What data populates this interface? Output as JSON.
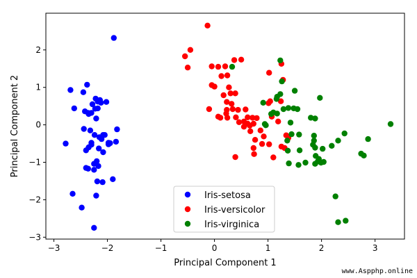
{
  "chart_data": {
    "type": "scatter",
    "title": "",
    "xlabel": "Principal Component 1",
    "ylabel": "Principal Component 2",
    "xlim": [
      -3.15,
      3.55
    ],
    "ylim": [
      -3.05,
      2.98
    ],
    "xticks": [
      -3,
      -2,
      -1,
      0,
      1,
      2,
      3
    ],
    "yticks": [
      -3,
      -2,
      -1,
      0,
      1,
      2
    ],
    "xtick_labels": [
      "−3",
      "−2",
      "−1",
      "0",
      "1",
      "2",
      "3"
    ],
    "ytick_labels": [
      "−3",
      "−2",
      "−1",
      "0",
      "1",
      "2"
    ],
    "grid": false,
    "legend_position": "bottom-center",
    "series": [
      {
        "name": "Iris-setosa",
        "color": "#0000ff",
        "points": [
          [
            -2.78,
            -0.5
          ],
          [
            -2.65,
            -1.84
          ],
          [
            -2.69,
            0.93
          ],
          [
            -2.62,
            0.44
          ],
          [
            -2.48,
            -2.21
          ],
          [
            -2.38,
            1.07
          ],
          [
            -2.45,
            0.87
          ],
          [
            -2.42,
            0.36
          ],
          [
            -2.35,
            0.29
          ],
          [
            -2.4,
            -0.68
          ],
          [
            -2.36,
            -1.17
          ],
          [
            -2.3,
            -0.53
          ],
          [
            -2.25,
            -2.75
          ],
          [
            -2.28,
            0.55
          ],
          [
            -2.22,
            0.7
          ],
          [
            -2.18,
            0.62
          ],
          [
            -2.25,
            -1.04
          ],
          [
            -2.2,
            -0.97
          ],
          [
            -2.14,
            0.66
          ],
          [
            -2.12,
            0.59
          ],
          [
            -2.16,
            -0.63
          ],
          [
            -2.08,
            -0.73
          ],
          [
            -1.98,
            -0.48
          ],
          [
            -1.95,
            -0.49
          ],
          [
            -1.88,
            2.32
          ],
          [
            -1.84,
            -0.45
          ],
          [
            -2.08,
            -0.27
          ],
          [
            -2.19,
            -1.51
          ],
          [
            -2.09,
            -1.53
          ],
          [
            -1.9,
            -1.45
          ],
          [
            -2.02,
            0.61
          ],
          [
            -2.25,
            -1.2
          ],
          [
            -2.36,
            0.32
          ],
          [
            -2.3,
            0.32
          ],
          [
            -2.23,
            0.43
          ],
          [
            -2.18,
            0.44
          ],
          [
            -2.21,
            0.17
          ],
          [
            -2.44,
            -0.11
          ],
          [
            -2.32,
            -0.15
          ],
          [
            -2.24,
            -0.27
          ],
          [
            -2.15,
            -0.33
          ],
          [
            -2.05,
            -0.27
          ],
          [
            -1.98,
            -0.52
          ],
          [
            -2.17,
            -1.1
          ],
          [
            -2.3,
            -0.48
          ],
          [
            -1.82,
            -0.12
          ],
          [
            -2.4,
            -1.15
          ],
          [
            -2.35,
            -0.6
          ],
          [
            -2.21,
            -1.89
          ],
          [
            -2.11,
            -0.38
          ]
        ]
      },
      {
        "name": "Iris-versicolor",
        "color": "#ff0000",
        "points": [
          [
            -0.13,
            2.65
          ],
          [
            -0.45,
            2.0
          ],
          [
            -0.55,
            1.83
          ],
          [
            -0.5,
            1.53
          ],
          [
            -0.05,
            1.56
          ],
          [
            0.07,
            1.55
          ],
          [
            0.2,
            1.56
          ],
          [
            0.13,
            1.3
          ],
          [
            0.24,
            1.32
          ],
          [
            0.37,
            1.73
          ],
          [
            0.5,
            1.74
          ],
          [
            -0.05,
            1.06
          ],
          [
            0.0,
            1.02
          ],
          [
            0.17,
            0.79
          ],
          [
            0.3,
            0.84
          ],
          [
            0.39,
            0.84
          ],
          [
            0.27,
            1.0
          ],
          [
            0.23,
            0.61
          ],
          [
            0.32,
            0.56
          ],
          [
            0.34,
            0.42
          ],
          [
            0.44,
            0.4
          ],
          [
            0.58,
            0.41
          ],
          [
            -0.1,
            0.42
          ],
          [
            0.07,
            0.22
          ],
          [
            0.11,
            0.19
          ],
          [
            0.22,
            0.3
          ],
          [
            0.24,
            0.19
          ],
          [
            0.23,
            0.4
          ],
          [
            0.4,
            0.2
          ],
          [
            0.46,
            0.07
          ],
          [
            0.55,
            0.09
          ],
          [
            0.62,
            0.2
          ],
          [
            0.71,
            0.19
          ],
          [
            0.62,
            0.03
          ],
          [
            0.66,
            -0.02
          ],
          [
            0.73,
            0.03
          ],
          [
            0.86,
            -0.15
          ],
          [
            0.79,
            0.18
          ],
          [
            1.01,
            0.58
          ],
          [
            1.04,
            0.63
          ],
          [
            1.24,
            0.63
          ],
          [
            1.25,
            1.63
          ],
          [
            1.28,
            1.2
          ],
          [
            1.02,
            1.39
          ],
          [
            1.07,
            0.22
          ],
          [
            0.92,
            -0.31
          ],
          [
            0.76,
            -0.4
          ],
          [
            0.73,
            -0.62
          ],
          [
            0.74,
            -0.78
          ],
          [
            0.89,
            -0.51
          ],
          [
            1.02,
            -0.52
          ],
          [
            1.1,
            -0.87
          ],
          [
            0.39,
            -0.86
          ],
          [
            1.31,
            -0.62
          ],
          [
            1.38,
            -0.35
          ],
          [
            0.67,
            -0.17
          ],
          [
            0.55,
            -0.05
          ],
          [
            1.19,
            0.09
          ],
          [
            1.25,
            -0.58
          ],
          [
            1.34,
            -0.28
          ]
        ]
      },
      {
        "name": "Iris-virginica",
        "color": "#008000",
        "points": [
          [
            0.33,
            1.55
          ],
          [
            1.23,
            1.72
          ],
          [
            1.26,
            1.16
          ],
          [
            1.5,
            0.91
          ],
          [
            1.97,
            0.72
          ],
          [
            1.23,
            0.82
          ],
          [
            1.16,
            0.69
          ],
          [
            1.17,
            0.75
          ],
          [
            0.91,
            0.59
          ],
          [
            1.1,
            0.33
          ],
          [
            1.17,
            0.3
          ],
          [
            1.29,
            0.42
          ],
          [
            1.38,
            0.45
          ],
          [
            1.48,
            0.44
          ],
          [
            1.55,
            0.42
          ],
          [
            1.8,
            0.19
          ],
          [
            1.88,
            0.17
          ],
          [
            1.06,
            0.29
          ],
          [
            0.94,
            0.02
          ],
          [
            0.96,
            -0.01
          ],
          [
            1.42,
            0.06
          ],
          [
            1.44,
            -0.25
          ],
          [
            1.58,
            -0.26
          ],
          [
            1.86,
            -0.29
          ],
          [
            1.86,
            -0.42
          ],
          [
            2.43,
            -0.23
          ],
          [
            2.31,
            -0.42
          ],
          [
            2.87,
            -0.38
          ],
          [
            3.29,
            0.02
          ],
          [
            1.84,
            -0.53
          ],
          [
            1.88,
            -0.61
          ],
          [
            2.02,
            -0.64
          ],
          [
            2.19,
            -0.56
          ],
          [
            1.59,
            -0.68
          ],
          [
            1.37,
            -0.69
          ],
          [
            1.36,
            -0.42
          ],
          [
            1.89,
            -0.83
          ],
          [
            1.99,
            -1.01
          ],
          [
            1.93,
            -0.98
          ],
          [
            1.88,
            -1.04
          ],
          [
            1.7,
            -1.01
          ],
          [
            1.57,
            -1.07
          ],
          [
            1.39,
            -1.03
          ],
          [
            2.74,
            -0.77
          ],
          [
            2.79,
            -0.82
          ],
          [
            2.26,
            -1.91
          ],
          [
            2.31,
            -2.6
          ],
          [
            2.45,
            -2.56
          ],
          [
            1.95,
            -0.91
          ],
          [
            2.04,
            -0.99
          ]
        ]
      }
    ]
  },
  "watermark": "www.Aspphp.online"
}
